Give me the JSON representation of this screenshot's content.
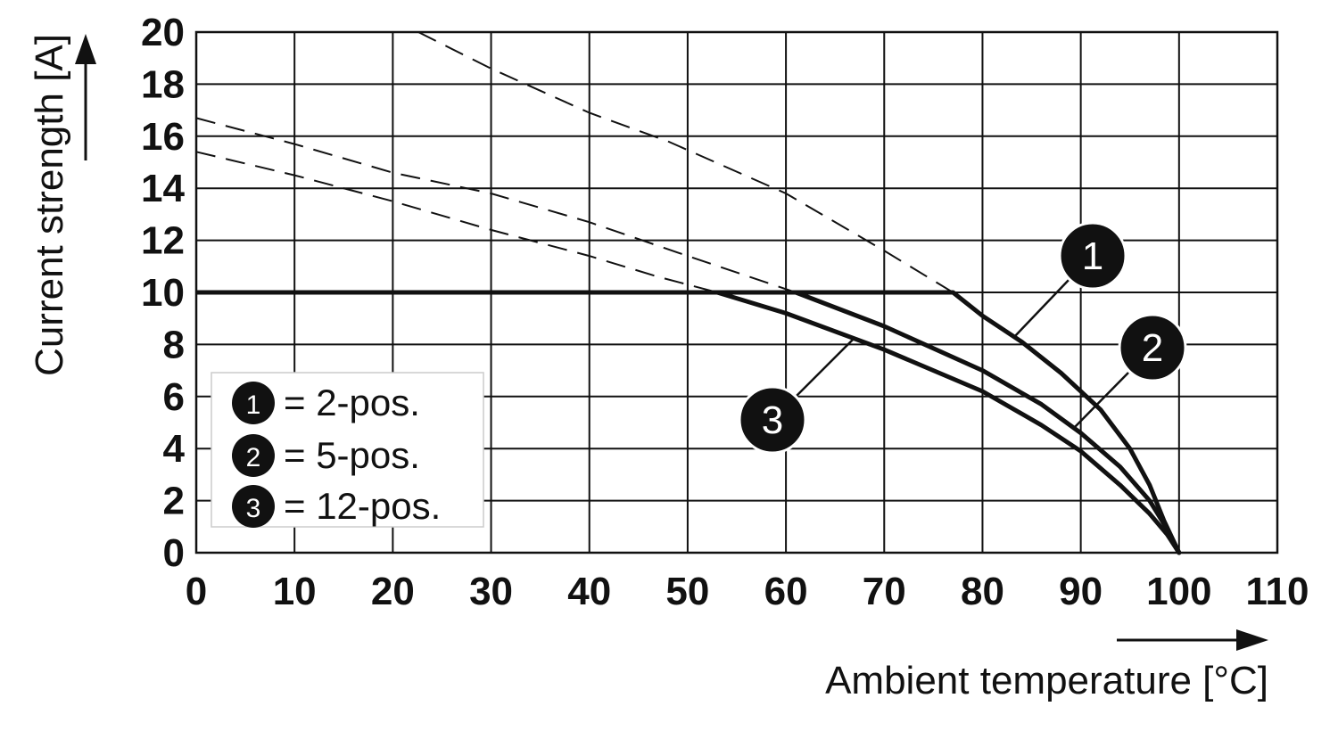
{
  "chart_data": {
    "type": "line",
    "xlabel": "Ambient temperature [°C]",
    "ylabel": "Current strength [A]",
    "xlim": [
      0,
      110
    ],
    "ylim": [
      0,
      20
    ],
    "xticks": [
      0,
      10,
      20,
      30,
      40,
      50,
      60,
      70,
      80,
      90,
      100,
      110
    ],
    "yticks": [
      0,
      2,
      4,
      6,
      8,
      10,
      12,
      14,
      16,
      18,
      20
    ],
    "grid": true,
    "legend_position": "bottom-left",
    "limit": {
      "y": 10,
      "x_start": 0
    },
    "series": [
      {
        "id": "1",
        "name": "= 2-pos.",
        "dashed": [
          [
            22.6,
            20
          ],
          [
            30,
            18.6
          ],
          [
            40,
            16.9
          ],
          [
            48,
            15.8
          ],
          [
            60,
            13.8
          ],
          [
            70,
            11.6
          ],
          [
            77,
            10
          ]
        ],
        "derated": [
          [
            77,
            10
          ],
          [
            80,
            9.1
          ],
          [
            84,
            8.1
          ],
          [
            88,
            6.9
          ],
          [
            92,
            5.5
          ],
          [
            95,
            4.0
          ],
          [
            97,
            2.6
          ],
          [
            98.5,
            1.2
          ],
          [
            100,
            0
          ]
        ]
      },
      {
        "id": "2",
        "name": "= 5-pos.",
        "dashed": [
          [
            0,
            16.7
          ],
          [
            10,
            15.7
          ],
          [
            20,
            14.6
          ],
          [
            30,
            13.8
          ],
          [
            40,
            12.7
          ],
          [
            50,
            11.4
          ],
          [
            61,
            10
          ]
        ],
        "derated": [
          [
            61,
            10
          ],
          [
            70,
            8.7
          ],
          [
            80,
            7.0
          ],
          [
            86,
            5.7
          ],
          [
            90,
            4.6
          ],
          [
            94,
            3.3
          ],
          [
            97,
            2.0
          ],
          [
            98.8,
            0.9
          ],
          [
            100,
            0
          ]
        ]
      },
      {
        "id": "3",
        "name": "= 12-pos.",
        "dashed": [
          [
            0,
            15.4
          ],
          [
            10,
            14.5
          ],
          [
            20,
            13.5
          ],
          [
            30,
            12.4
          ],
          [
            40,
            11.4
          ],
          [
            47,
            10.6
          ],
          [
            53,
            10
          ]
        ],
        "derated": [
          [
            53,
            10
          ],
          [
            60,
            9.2
          ],
          [
            70,
            7.8
          ],
          [
            80,
            6.2
          ],
          [
            86,
            4.9
          ],
          [
            90,
            3.9
          ],
          [
            94,
            2.6
          ],
          [
            97,
            1.5
          ],
          [
            98.8,
            0.7
          ],
          [
            100,
            0
          ]
        ]
      }
    ],
    "callouts": [
      {
        "id": "1",
        "label": "1"
      },
      {
        "id": "2",
        "label": "2"
      },
      {
        "id": "3",
        "label": "3"
      }
    ]
  }
}
